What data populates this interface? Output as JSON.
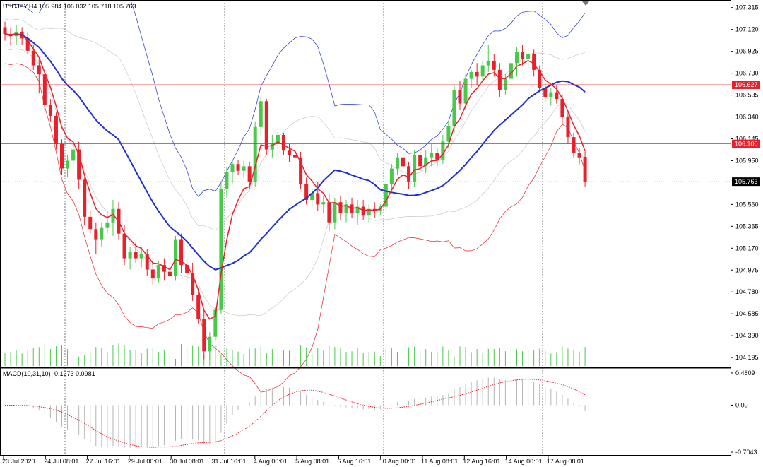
{
  "header": {
    "symbol_info": "USDJPY,H4  105.984 106.032 105.718 105.763",
    "macd_info": "MACD(10,31,10) -0.1273 0.0981"
  },
  "chart_data": {
    "type": "candlestick",
    "symbol": "USDJPY",
    "timeframe": "H4",
    "ohlc_last": {
      "open": 105.984,
      "high": 106.032,
      "low": 105.718,
      "close": 105.763
    },
    "price_axis": {
      "ylim": [
        104.12,
        107.37
      ],
      "ticks": [
        "107.315",
        "107.120",
        "106.925",
        "106.730",
        "106.535",
        "106.340",
        "106.145",
        "105.950",
        "105.560",
        "105.365",
        "105.170",
        "104.975",
        "104.780",
        "104.585",
        "104.390",
        "104.195"
      ]
    },
    "time_axis": {
      "labels": [
        "23 Jul 2020",
        "24 Jul 08:01",
        "27 Jul 16:01",
        "29 Jul 00:01",
        "30 Jul 08:01",
        "31 Jul 16:01",
        "4 Aug 00:01",
        "5 Aug 08:01",
        "6 Aug 16:01",
        "10 Aug 00:01",
        "11 Aug 08:01",
        "12 Aug 16:01",
        "14 Aug 00:01",
        "17 Aug 08:01"
      ]
    },
    "price_markers": [
      {
        "label": "106.627",
        "color": "#e8202a"
      },
      {
        "label": "106.100",
        "color": "#e8202a"
      },
      {
        "label": "105.763",
        "color": "#000000"
      }
    ],
    "candles": [
      [
        107.14,
        107.19,
        107.02,
        107.08
      ],
      [
        107.08,
        107.14,
        106.98,
        107.06
      ],
      [
        107.06,
        107.16,
        106.98,
        107.1
      ],
      [
        107.1,
        107.14,
        106.98,
        107.04
      ],
      [
        107.04,
        107.1,
        106.9,
        106.93
      ],
      [
        106.93,
        106.98,
        106.76,
        106.8
      ],
      [
        106.8,
        106.86,
        106.55,
        106.72
      ],
      [
        106.72,
        106.76,
        106.4,
        106.45
      ],
      [
        106.45,
        106.5,
        106.3,
        106.35
      ],
      [
        106.35,
        106.38,
        106.05,
        106.1
      ],
      [
        106.1,
        106.14,
        105.82,
        105.88
      ],
      [
        105.88,
        106.0,
        105.8,
        105.95
      ],
      [
        105.95,
        106.08,
        105.88,
        106.05
      ],
      [
        106.05,
        106.12,
        105.7,
        105.78
      ],
      [
        105.78,
        105.8,
        105.38,
        105.45
      ],
      [
        105.45,
        105.5,
        105.3,
        105.34
      ],
      [
        105.34,
        105.4,
        105.12,
        105.25
      ],
      [
        105.25,
        105.4,
        105.18,
        105.35
      ],
      [
        105.35,
        105.5,
        105.3,
        105.4
      ],
      [
        105.4,
        105.6,
        105.28,
        105.52
      ],
      [
        105.52,
        105.58,
        105.25,
        105.3
      ],
      [
        105.3,
        105.38,
        105.02,
        105.08
      ],
      [
        105.08,
        105.18,
        104.98,
        105.14
      ],
      [
        105.14,
        105.22,
        105.04,
        105.08
      ],
      [
        105.08,
        105.18,
        105.0,
        105.12
      ],
      [
        105.12,
        105.16,
        104.92,
        104.98
      ],
      [
        104.98,
        105.06,
        104.84,
        104.9
      ],
      [
        104.9,
        105.06,
        104.86,
        105.02
      ],
      [
        105.02,
        105.08,
        104.88,
        104.96
      ],
      [
        104.96,
        105.02,
        104.78,
        104.92
      ],
      [
        104.92,
        105.28,
        104.88,
        105.25
      ],
      [
        105.25,
        105.3,
        104.95,
        105.02
      ],
      [
        105.02,
        105.08,
        104.84,
        104.95
      ],
      [
        104.95,
        105.04,
        104.7,
        104.75
      ],
      [
        104.75,
        104.8,
        104.5,
        104.54
      ],
      [
        104.54,
        104.62,
        104.18,
        104.25
      ],
      [
        104.25,
        104.42,
        104.18,
        104.38
      ],
      [
        104.38,
        104.65,
        104.34,
        104.62
      ],
      [
        104.62,
        105.75,
        104.58,
        105.7
      ],
      [
        105.7,
        105.9,
        105.62,
        105.85
      ],
      [
        105.85,
        105.95,
        105.75,
        105.92
      ],
      [
        105.92,
        105.96,
        105.82,
        105.86
      ],
      [
        105.86,
        105.95,
        105.8,
        105.9
      ],
      [
        105.9,
        105.94,
        105.7,
        105.76
      ],
      [
        105.76,
        106.3,
        105.72,
        106.25
      ],
      [
        106.25,
        106.52,
        106.18,
        106.48
      ],
      [
        106.48,
        106.5,
        106.0,
        106.05
      ],
      [
        106.05,
        106.18,
        105.98,
        106.1
      ],
      [
        106.1,
        106.22,
        106.04,
        106.18
      ],
      [
        106.18,
        106.2,
        106.0,
        106.04
      ],
      [
        106.04,
        106.1,
        105.94,
        106.0
      ],
      [
        106.0,
        106.06,
        105.88,
        105.98
      ],
      [
        105.98,
        106.03,
        105.7,
        105.74
      ],
      [
        105.74,
        105.8,
        105.56,
        105.6
      ],
      [
        105.6,
        105.7,
        105.54,
        105.66
      ],
      [
        105.66,
        105.76,
        105.5,
        105.56
      ],
      [
        105.56,
        105.64,
        105.48,
        105.58
      ],
      [
        105.58,
        105.66,
        105.32,
        105.4
      ],
      [
        105.4,
        105.62,
        105.34,
        105.58
      ],
      [
        105.58,
        105.64,
        105.42,
        105.48
      ],
      [
        105.48,
        105.6,
        105.4,
        105.56
      ],
      [
        105.56,
        105.62,
        105.44,
        105.48
      ],
      [
        105.48,
        105.6,
        105.38,
        105.54
      ],
      [
        105.54,
        105.6,
        105.42,
        105.46
      ],
      [
        105.46,
        105.56,
        105.4,
        105.52
      ],
      [
        105.52,
        105.58,
        105.44,
        105.5
      ],
      [
        105.5,
        105.56,
        105.46,
        105.54
      ],
      [
        105.54,
        105.78,
        105.5,
        105.74
      ],
      [
        105.74,
        105.92,
        105.7,
        105.88
      ],
      [
        105.88,
        106.02,
        105.82,
        105.98
      ],
      [
        105.98,
        106.02,
        105.86,
        105.9
      ],
      [
        105.9,
        105.94,
        105.7,
        105.76
      ],
      [
        105.76,
        106.04,
        105.72,
        106.0
      ],
      [
        106.0,
        106.06,
        105.86,
        105.9
      ],
      [
        105.9,
        106.04,
        105.84,
        105.98
      ],
      [
        105.98,
        106.1,
        105.9,
        106.02
      ],
      [
        106.02,
        106.06,
        105.9,
        105.96
      ],
      [
        105.96,
        106.18,
        105.92,
        106.12
      ],
      [
        106.12,
        106.3,
        106.06,
        106.26
      ],
      [
        106.26,
        106.62,
        106.2,
        106.58
      ],
      [
        106.58,
        106.66,
        106.4,
        106.46
      ],
      [
        106.46,
        106.72,
        106.4,
        106.68
      ],
      [
        106.68,
        106.76,
        106.6,
        106.74
      ],
      [
        106.74,
        106.82,
        106.62,
        106.7
      ],
      [
        106.7,
        106.84,
        106.66,
        106.8
      ],
      [
        106.8,
        106.98,
        106.74,
        106.84
      ],
      [
        106.84,
        106.9,
        106.7,
        106.76
      ],
      [
        106.76,
        106.82,
        106.52,
        106.58
      ],
      [
        106.58,
        106.72,
        106.54,
        106.68
      ],
      [
        106.68,
        106.86,
        106.62,
        106.82
      ],
      [
        106.82,
        106.96,
        106.7,
        106.92
      ],
      [
        106.92,
        106.98,
        106.8,
        106.86
      ],
      [
        106.86,
        106.96,
        106.78,
        106.9
      ],
      [
        106.9,
        106.94,
        106.7,
        106.76
      ],
      [
        106.76,
        106.8,
        106.56,
        106.6
      ],
      [
        106.6,
        106.64,
        106.48,
        106.52
      ],
      [
        106.52,
        106.6,
        106.44,
        106.56
      ],
      [
        106.56,
        106.62,
        106.46,
        106.5
      ],
      [
        106.5,
        106.54,
        106.28,
        106.34
      ],
      [
        106.34,
        106.38,
        106.1,
        106.16
      ],
      [
        106.16,
        106.2,
        105.98,
        106.02
      ],
      [
        106.02,
        106.06,
        105.92,
        105.98
      ],
      [
        105.984,
        106.032,
        105.718,
        105.763
      ]
    ],
    "indicators": {
      "ma_fast_color": "#e8202a",
      "ma_slow_color": "#1c2fd6",
      "bands_upper_color": "#1c2fd6",
      "bands_lower_color": "#e8202a",
      "bands_inner_color": "#c8c8c8"
    },
    "macd": {
      "name": "MACD(10,31,10)",
      "value": -0.1273,
      "signal": 0.0981,
      "ylim": [
        -0.7043,
        0.4809
      ],
      "ticks": [
        "0.4809",
        "0.00",
        "-0.7043"
      ],
      "histogram_color": "#b4b4b4",
      "signal_color": "#e8202a"
    },
    "volume_color": "#49c949",
    "candle_up_color": "#49c949",
    "candle_down_color": "#e8202a",
    "grid": false
  }
}
